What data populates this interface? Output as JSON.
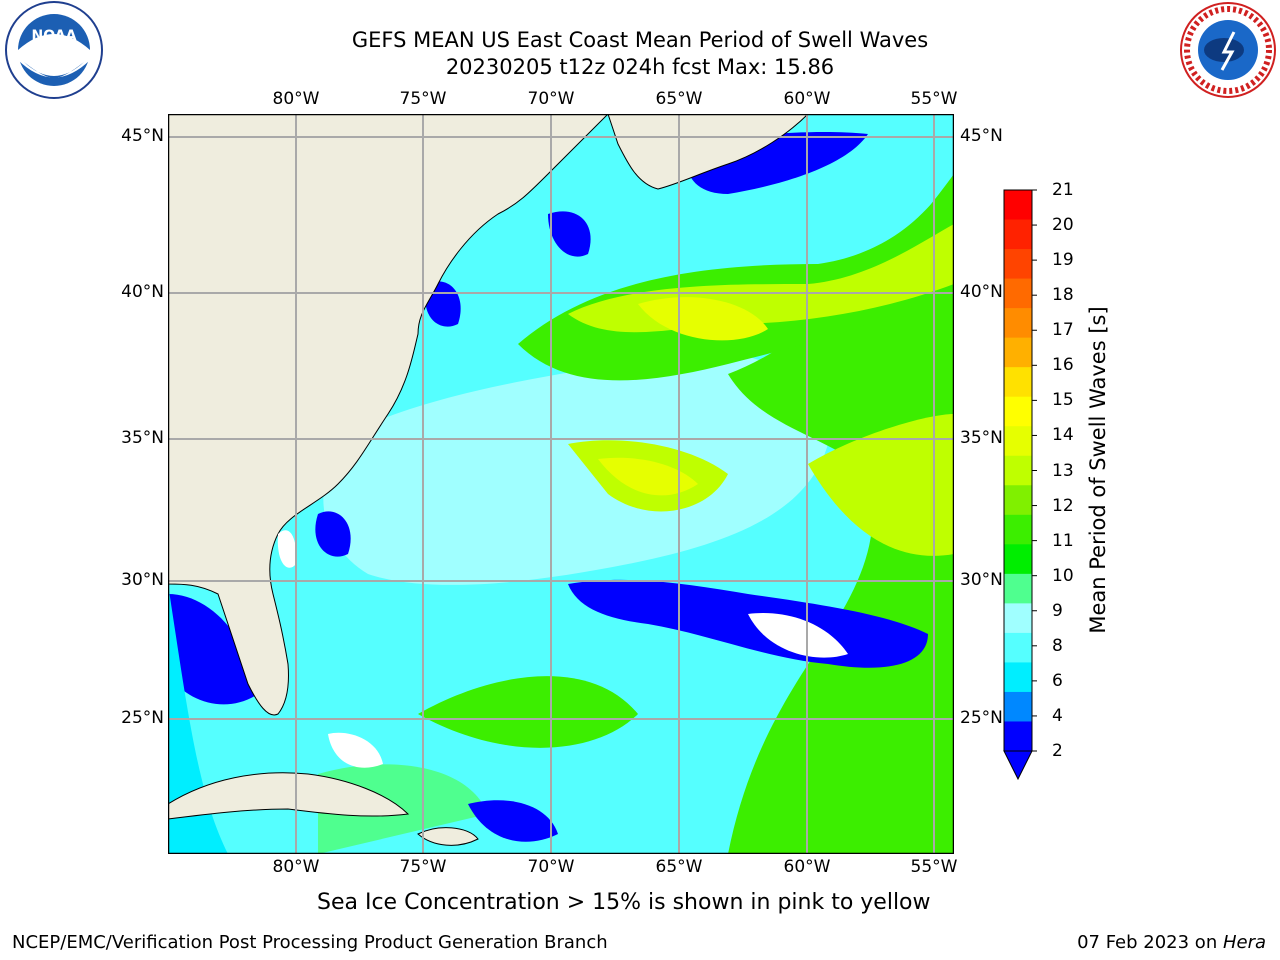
{
  "title_line1": "GEFS MEAN US East Coast Mean Period of Swell Waves",
  "title_line2": "20230205 t12z 024h fcst   Max: 15.86",
  "lon_ticks": [
    "80°W",
    "75°W",
    "70°W",
    "65°W",
    "60°W",
    "55°W"
  ],
  "lat_ticks": [
    "45°N",
    "40°N",
    "35°N",
    "30°N",
    "25°N"
  ],
  "colorbar": {
    "label": "Mean Period of Swell Waves [s]",
    "ticks": [
      "21",
      "20",
      "19",
      "18",
      "17",
      "16",
      "15",
      "14",
      "13",
      "12",
      "11",
      "10",
      "9",
      "8",
      "6",
      "4",
      "2"
    ],
    "colors": [
      "#ff0000",
      "#ff2200",
      "#ff4400",
      "#ff6a00",
      "#ff8c00",
      "#ffb000",
      "#ffe100",
      "#ffff00",
      "#e6ff00",
      "#bfff00",
      "#80f000",
      "#3cee00",
      "#00ee00",
      "#4fff8f",
      "#a0ffff",
      "#55ffff",
      "#00eeff",
      "#0088ff",
      "#0000ff"
    ]
  },
  "caption": "Sea Ice Concentration > 15% is shown in pink to yellow",
  "footer_left": "NCEP/EMC/Verification Post Processing Product Generation Branch",
  "footer_right_date": "07 Feb 2023 on ",
  "footer_right_host": "Hera",
  "logos": {
    "noaa_text": "NOAA",
    "nws_text": "NATIONAL WEATHER SERVICE"
  }
}
